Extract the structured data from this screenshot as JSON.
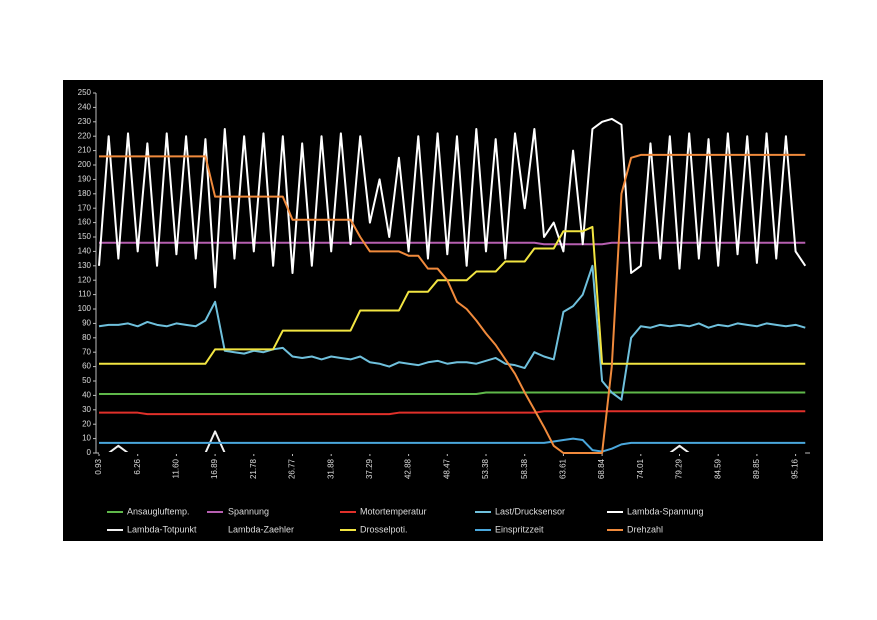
{
  "chart_data": {
    "type": "line",
    "categories": [
      "0.93",
      null,
      null,
      null,
      "6.26",
      null,
      null,
      null,
      "11.60",
      null,
      null,
      null,
      "16.89",
      null,
      null,
      null,
      "21.78",
      null,
      null,
      null,
      "26.77",
      null,
      null,
      null,
      "31.88",
      null,
      null,
      null,
      "37.29",
      null,
      null,
      null,
      "42.88",
      null,
      null,
      null,
      "48.47",
      null,
      null,
      null,
      "53.38",
      null,
      null,
      null,
      "58.38",
      null,
      null,
      null,
      "63.61",
      null,
      null,
      null,
      "68.84",
      null,
      null,
      null,
      "74.01",
      null,
      null,
      null,
      "79.29",
      null,
      null,
      null,
      "84.59",
      null,
      null,
      null,
      "89.85",
      null,
      null,
      null,
      "95.16",
      null
    ],
    "ylim": [
      0,
      250
    ],
    "yticks": [
      0,
      10,
      20,
      30,
      40,
      50,
      60,
      70,
      80,
      90,
      100,
      110,
      120,
      130,
      140,
      150,
      160,
      170,
      180,
      190,
      200,
      210,
      220,
      230,
      240,
      250
    ],
    "series": [
      {
        "name": "Ansaugluftemp.",
        "color": "#5fb84a",
        "values": [
          41,
          41,
          41,
          41,
          41,
          41,
          41,
          41,
          41,
          41,
          41,
          41,
          41,
          41,
          41,
          41,
          41,
          41,
          41,
          41,
          41,
          41,
          41,
          41,
          41,
          41,
          41,
          41,
          41,
          41,
          41,
          41,
          41,
          41,
          41,
          41,
          41,
          41,
          41,
          41,
          42,
          42,
          42,
          42,
          42,
          42,
          42,
          42,
          42,
          42,
          42,
          42,
          42,
          42,
          42,
          42,
          42,
          42,
          42,
          42,
          42,
          42,
          42,
          42,
          42,
          42,
          42,
          42,
          42,
          42,
          42,
          42,
          42,
          42
        ]
      },
      {
        "name": "Spannung",
        "color": "#b65fb0",
        "values": [
          146,
          146,
          146,
          146,
          146,
          146,
          146,
          146,
          146,
          146,
          146,
          146,
          146,
          146,
          146,
          146,
          146,
          146,
          146,
          146,
          146,
          146,
          146,
          146,
          146,
          146,
          146,
          146,
          146,
          146,
          146,
          146,
          146,
          146,
          146,
          146,
          146,
          146,
          146,
          146,
          146,
          146,
          146,
          146,
          146,
          146,
          145,
          145,
          145,
          145,
          145,
          145,
          145,
          146,
          146,
          146,
          146,
          146,
          146,
          146,
          146,
          146,
          146,
          146,
          146,
          146,
          146,
          146,
          146,
          146,
          146,
          146,
          146,
          146
        ]
      },
      {
        "name": "Motortemperatur",
        "color": "#e0302a",
        "values": [
          28,
          28,
          28,
          28,
          28,
          27,
          27,
          27,
          27,
          27,
          27,
          27,
          27,
          27,
          27,
          27,
          27,
          27,
          27,
          27,
          27,
          27,
          27,
          27,
          27,
          27,
          27,
          27,
          27,
          27,
          27,
          28,
          28,
          28,
          28,
          28,
          28,
          28,
          28,
          28,
          28,
          28,
          28,
          28,
          28,
          28,
          29,
          29,
          29,
          29,
          29,
          29,
          29,
          29,
          29,
          29,
          29,
          29,
          29,
          29,
          29,
          29,
          29,
          29,
          29,
          29,
          29,
          29,
          29,
          29,
          29,
          29,
          29,
          29
        ]
      },
      {
        "name": "Last/Drucksensor",
        "color": "#6fc0dc",
        "values": [
          88,
          89,
          89,
          90,
          88,
          91,
          89,
          88,
          90,
          89,
          88,
          92,
          105,
          71,
          70,
          69,
          71,
          70,
          72,
          73,
          67,
          66,
          67,
          65,
          67,
          66,
          65,
          67,
          63,
          62,
          60,
          63,
          62,
          61,
          63,
          64,
          62,
          63,
          63,
          62,
          64,
          66,
          62,
          61,
          59,
          70,
          67,
          65,
          98,
          102,
          110,
          130,
          50,
          42,
          37,
          80,
          88,
          87,
          89,
          88,
          89,
          88,
          90,
          87,
          89,
          88,
          90,
          89,
          88,
          90,
          89,
          88,
          89,
          87
        ]
      },
      {
        "name": "Lambda-Spannung",
        "color": "#ffffff",
        "values": [
          130,
          220,
          135,
          222,
          140,
          215,
          130,
          222,
          138,
          220,
          135,
          218,
          115,
          225,
          135,
          220,
          140,
          222,
          130,
          220,
          125,
          215,
          130,
          220,
          140,
          222,
          145,
          220,
          160,
          190,
          150,
          205,
          140,
          220,
          135,
          222,
          138,
          220,
          130,
          225,
          140,
          218,
          135,
          222,
          170,
          225,
          150,
          160,
          140,
          210,
          145,
          225,
          230,
          232,
          228,
          125,
          130,
          215,
          135,
          220,
          128,
          222,
          135,
          218,
          130,
          222,
          138,
          220,
          132,
          222,
          135,
          220,
          140,
          130
        ]
      },
      {
        "name": "Lambda-Totpunkt",
        "color": "#f0f0f0",
        "values": [
          0,
          0,
          5,
          0,
          0,
          0,
          0,
          0,
          0,
          0,
          0,
          0,
          15,
          0,
          0,
          0,
          0,
          0,
          0,
          0,
          0,
          0,
          0,
          0,
          0,
          0,
          0,
          0,
          0,
          0,
          0,
          0,
          0,
          0,
          0,
          0,
          0,
          0,
          0,
          0,
          0,
          0,
          0,
          0,
          0,
          0,
          0,
          0,
          0,
          0,
          0,
          0,
          0,
          0,
          0,
          0,
          0,
          0,
          0,
          0,
          5,
          0,
          0,
          0,
          0,
          0,
          0,
          0,
          0,
          0,
          0,
          0,
          0,
          0
        ]
      },
      {
        "name": "Lambda-Zaehler",
        "color": "#000000",
        "values": [
          0,
          0,
          0,
          0,
          0,
          0,
          0,
          0,
          0,
          0,
          0,
          0,
          0,
          0,
          0,
          0,
          0,
          0,
          0,
          0,
          0,
          0,
          0,
          0,
          0,
          0,
          0,
          0,
          0,
          0,
          0,
          0,
          0,
          0,
          0,
          0,
          0,
          0,
          0,
          0,
          0,
          0,
          0,
          0,
          0,
          0,
          0,
          0,
          0,
          0,
          0,
          0,
          0,
          0,
          0,
          0,
          0,
          0,
          0,
          0,
          0,
          0,
          0,
          0,
          0,
          0,
          0,
          0,
          0,
          0,
          0,
          0,
          0,
          0
        ]
      },
      {
        "name": "Drosselpoti.",
        "color": "#f2e542",
        "values": [
          62,
          62,
          62,
          62,
          62,
          62,
          62,
          62,
          62,
          62,
          62,
          62,
          72,
          72,
          72,
          72,
          72,
          72,
          72,
          85,
          85,
          85,
          85,
          85,
          85,
          85,
          85,
          99,
          99,
          99,
          99,
          99,
          112,
          112,
          112,
          120,
          120,
          120,
          120,
          126,
          126,
          126,
          133,
          133,
          133,
          142,
          142,
          142,
          154,
          154,
          154,
          157,
          62,
          62,
          62,
          62,
          62,
          62,
          62,
          62,
          62,
          62,
          62,
          62,
          62,
          62,
          62,
          62,
          62,
          62,
          62,
          62,
          62,
          62
        ]
      },
      {
        "name": "Einspritzzeit",
        "color": "#4aa7dc",
        "values": [
          7,
          7,
          7,
          7,
          7,
          7,
          7,
          7,
          7,
          7,
          7,
          7,
          7,
          7,
          7,
          7,
          7,
          7,
          7,
          7,
          7,
          7,
          7,
          7,
          7,
          7,
          7,
          7,
          7,
          7,
          7,
          7,
          7,
          7,
          7,
          7,
          7,
          7,
          7,
          7,
          7,
          7,
          7,
          7,
          7,
          7,
          7,
          8,
          9,
          10,
          9,
          2,
          1,
          3,
          6,
          7,
          7,
          7,
          7,
          7,
          7,
          7,
          7,
          7,
          7,
          7,
          7,
          7,
          7,
          7,
          7,
          7,
          7,
          7
        ]
      },
      {
        "name": "Drehzahl",
        "color": "#f08a3c",
        "values": [
          206,
          206,
          206,
          206,
          206,
          206,
          206,
          206,
          206,
          206,
          206,
          206,
          178,
          178,
          178,
          178,
          178,
          178,
          178,
          178,
          162,
          162,
          162,
          162,
          162,
          162,
          162,
          150,
          140,
          140,
          140,
          140,
          137,
          137,
          128,
          128,
          120,
          105,
          100,
          92,
          83,
          75,
          65,
          55,
          42,
          30,
          18,
          5,
          0,
          0,
          0,
          0,
          0,
          60,
          180,
          205,
          207,
          207,
          207,
          207,
          207,
          207,
          207,
          207,
          207,
          207,
          207,
          207,
          207,
          207,
          207,
          207,
          207,
          207
        ]
      }
    ]
  }
}
